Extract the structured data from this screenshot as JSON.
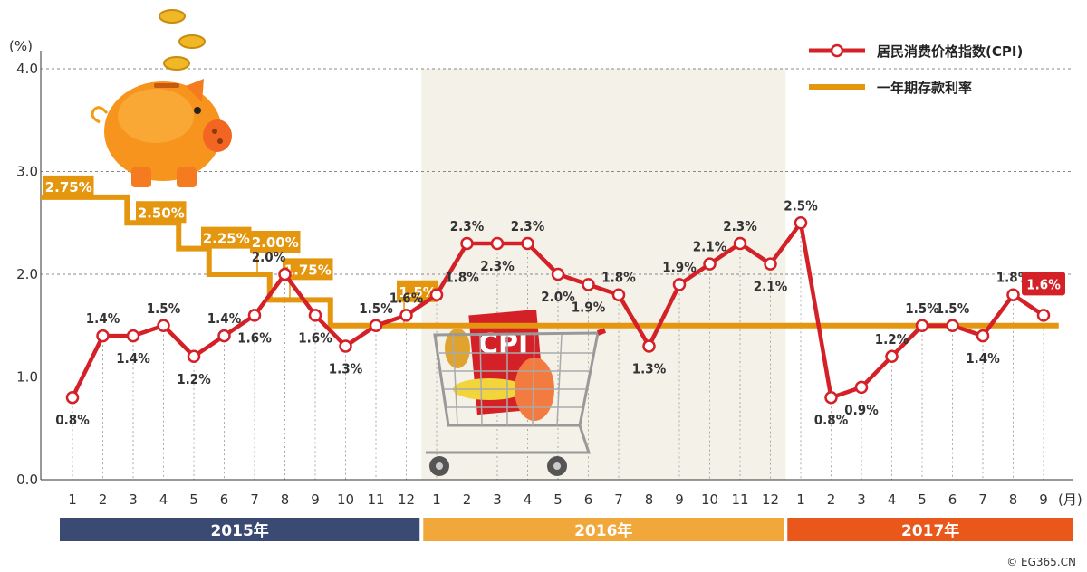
{
  "chart_data": {
    "type": "line",
    "ylabel": "(%)",
    "xunit": "(月)",
    "ylim": [
      0,
      4
    ],
    "yticks": [
      "0.0",
      "1.0",
      "2.0",
      "3.0",
      "4.0"
    ],
    "grid": true,
    "legend_position": "top-right",
    "x": [
      "1",
      "2",
      "3",
      "4",
      "5",
      "6",
      "7",
      "8",
      "9",
      "10",
      "11",
      "12",
      "1",
      "2",
      "3",
      "4",
      "5",
      "6",
      "7",
      "8",
      "9",
      "10",
      "11",
      "12",
      "1",
      "2",
      "3",
      "4",
      "5",
      "6",
      "7",
      "8",
      "9"
    ],
    "years": [
      {
        "label": "2015年",
        "start": 0,
        "end": 11,
        "color": "#3b4a73"
      },
      {
        "label": "2016年",
        "start": 12,
        "end": 23,
        "color": "#f2a73b"
      },
      {
        "label": "2017年",
        "start": 24,
        "end": 32,
        "color": "#e9571b"
      }
    ],
    "series": [
      {
        "name": "居民消费价格指数(CPI)",
        "color": "#d42027",
        "values": [
          0.8,
          1.4,
          1.4,
          1.5,
          1.2,
          1.4,
          1.6,
          2.0,
          1.6,
          1.3,
          1.5,
          1.6,
          1.8,
          2.3,
          2.3,
          2.3,
          2.0,
          1.9,
          1.8,
          1.3,
          1.9,
          2.1,
          2.3,
          2.1,
          2.5,
          0.8,
          0.9,
          1.2,
          1.5,
          1.5,
          1.4,
          1.8,
          1.6
        ],
        "labels": [
          "0.8%",
          "1.4%",
          "1.4%",
          "1.5%",
          "1.2%",
          "1.4%",
          "1.6%",
          "2.0%",
          "1.6%",
          "1.3%",
          "1.5%",
          "1.6%",
          "1.8%",
          "2.3%",
          "2.3%",
          "2.3%",
          "2.0%",
          "1.9%",
          "1.8%",
          "1.3%",
          "1.9%",
          "2.1%",
          "2.3%",
          "2.1%",
          "2.5%",
          "0.8%",
          "0.9%",
          "1.2%",
          "1.5%",
          "1.5%",
          "1.4%",
          "1.8%",
          "1.6%"
        ]
      },
      {
        "name": "一年期存款利率",
        "color": "#e5960f",
        "steps": [
          {
            "value": 2.75,
            "start": 0,
            "end": 2.3,
            "label": "2.75%"
          },
          {
            "value": 2.5,
            "start": 2.3,
            "end": 4.0,
            "label": "2.50%"
          },
          {
            "value": 2.25,
            "start": 4.0,
            "end": 5.0,
            "label": "2.25%"
          },
          {
            "value": 2.0,
            "start": 5.0,
            "end": 7.0,
            "label": "2.00%"
          },
          {
            "value": 1.75,
            "start": 7.0,
            "end": 9.0,
            "label": "1.75%"
          },
          {
            "value": 1.5,
            "start": 9.0,
            "end": 33.0,
            "label": "1.5%"
          }
        ]
      }
    ],
    "highlight": {
      "start": 12,
      "end": 23
    }
  },
  "icons": {
    "piggy": "piggy-bank-icon",
    "cart": "shopping-cart-icon",
    "cart_text": "CPI"
  },
  "copyright": "© EG365.CN"
}
